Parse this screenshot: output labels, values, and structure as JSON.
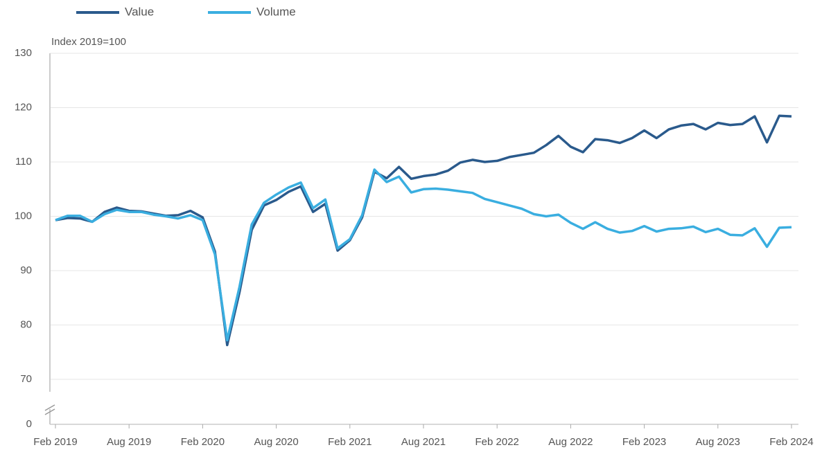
{
  "chart_data": {
    "type": "line",
    "y_label": "Index 2019=100",
    "categories": [
      "Feb 2019",
      null,
      null,
      null,
      null,
      null,
      "Aug 2019",
      null,
      null,
      null,
      null,
      null,
      "Feb 2020",
      null,
      null,
      null,
      null,
      null,
      "Aug 2020",
      null,
      null,
      null,
      null,
      null,
      "Feb 2021",
      null,
      null,
      null,
      null,
      null,
      "Aug 2021",
      null,
      null,
      null,
      null,
      null,
      "Feb 2022",
      null,
      null,
      null,
      null,
      null,
      "Aug 2022",
      null,
      null,
      null,
      null,
      null,
      "Feb 2023",
      null,
      null,
      null,
      null,
      null,
      "Aug 2023",
      null,
      null,
      null,
      null,
      null,
      "Feb 2024"
    ],
    "series": [
      {
        "name": "Value",
        "color": "#2a5a8c",
        "values": [
          99.3,
          99.7,
          99.6,
          99.0,
          100.8,
          101.6,
          101.0,
          100.9,
          100.5,
          100.1,
          100.2,
          101.0,
          99.8,
          93.5,
          76.3,
          86.0,
          97.5,
          102.0,
          103.0,
          104.5,
          105.5,
          100.8,
          102.3,
          93.7,
          95.6,
          99.8,
          108.2,
          107.0,
          109.1,
          106.9,
          107.4,
          107.7,
          108.4,
          109.9,
          110.4,
          110.0,
          110.2,
          110.9,
          111.3,
          111.7,
          113.1,
          114.8,
          112.8,
          111.8,
          114.2,
          114.0,
          113.5,
          114.4,
          115.8,
          114.4,
          116.0,
          116.7,
          117.0,
          116.0,
          117.2,
          116.8,
          117.0,
          118.4,
          113.6,
          118.5,
          118.4
        ]
      },
      {
        "name": "Volume",
        "color": "#3aaee0",
        "values": [
          99.3,
          100.1,
          100.1,
          99.0,
          100.4,
          101.2,
          100.8,
          100.8,
          100.3,
          100.0,
          99.6,
          100.2,
          99.3,
          93.0,
          77.2,
          87.0,
          98.5,
          102.5,
          104.0,
          105.3,
          106.2,
          101.5,
          103.1,
          94.1,
          95.8,
          100.2,
          108.6,
          106.3,
          107.3,
          104.4,
          105.0,
          105.1,
          104.9,
          104.6,
          104.3,
          103.2,
          102.6,
          102.0,
          101.4,
          100.4,
          100.0,
          100.3,
          98.8,
          97.7,
          98.9,
          97.7,
          97.0,
          97.3,
          98.2,
          97.2,
          97.7,
          97.8,
          98.1,
          97.1,
          97.7,
          96.6,
          96.5,
          97.8,
          94.4,
          97.9,
          98.0
        ]
      }
    ],
    "ylim": [
      0,
      130
    ],
    "y_break": [
      0,
      70
    ],
    "yticks": [
      0,
      70,
      80,
      90,
      100,
      110,
      120,
      130
    ],
    "grid": true,
    "legend": "top"
  }
}
